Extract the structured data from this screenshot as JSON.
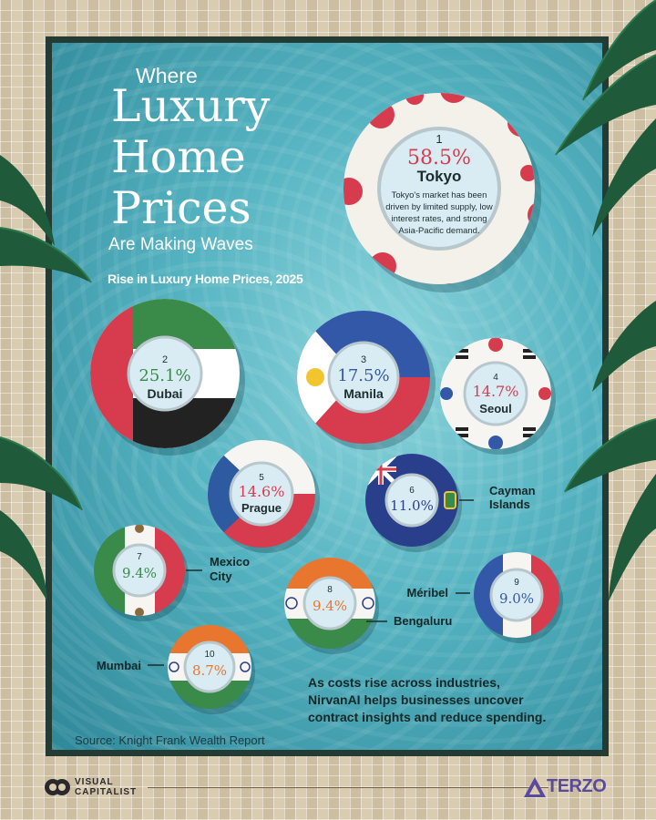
{
  "header": {
    "line1": "Where",
    "line2": "Luxury",
    "line3": "Home",
    "line4": "Prices",
    "line5": "Are Making Waves",
    "subtitle": "Rise in Luxury Home Prices, 2025"
  },
  "chart_data": {
    "type": "bubble",
    "title": "Where Luxury Home Prices Are Making Waves",
    "subtitle": "Rise in Luxury Home Prices, 2025",
    "unit": "%",
    "items": [
      {
        "rank": "1",
        "city": "Tokyo",
        "value": 58.5,
        "label": "58.5%",
        "note": [
          "Tokyo's market has been",
          "driven by limited supply, low",
          "interest rates, and strong",
          "Asia-Pacific demand."
        ]
      },
      {
        "rank": "2",
        "city": "Dubai",
        "value": 25.1,
        "label": "25.1%"
      },
      {
        "rank": "3",
        "city": "Manila",
        "value": 17.5,
        "label": "17.5%"
      },
      {
        "rank": "4",
        "city": "Seoul",
        "value": 14.7,
        "label": "14.7%"
      },
      {
        "rank": "5",
        "city": "Prague",
        "value": 14.6,
        "label": "14.6%"
      },
      {
        "rank": "6",
        "city": "Cayman Islands",
        "lines": [
          "Cayman",
          "Islands"
        ],
        "value": 11.0,
        "label": "11.0%"
      },
      {
        "rank": "7",
        "city": "Mexico City",
        "lines": [
          "Mexico",
          "City"
        ],
        "value": 9.4,
        "label": "9.4%"
      },
      {
        "rank": "8",
        "city": "Bengaluru",
        "value": 9.4,
        "label": "9.4%"
      },
      {
        "rank": "9",
        "city": "Méribel",
        "value": 9.0,
        "label": "9.0%"
      },
      {
        "rank": "10",
        "city": "Mumbai",
        "value": 8.7,
        "label": "8.7%"
      }
    ],
    "colors": {
      "tokyo": "#d63c4e",
      "dubai": "#3a8a4a",
      "manila": "#3458a8",
      "seoul": "#d63c4e",
      "prague": "#2d5aa0",
      "cayman": "#2a3f8c",
      "mexico": "#3a8a4a",
      "bengaluru": "#e8762f",
      "meribel": "#3458a8",
      "mumbai": "#e8762f"
    }
  },
  "promo": [
    "As costs rise across industries,",
    "NirvanAI helps businesses uncover",
    "contract insights and reduce spending."
  ],
  "source": "Source: Knight Frank Wealth Report",
  "footer": {
    "left_brand": [
      "VISUAL",
      "CAPITALIST"
    ],
    "right_brand": "TERZO"
  }
}
